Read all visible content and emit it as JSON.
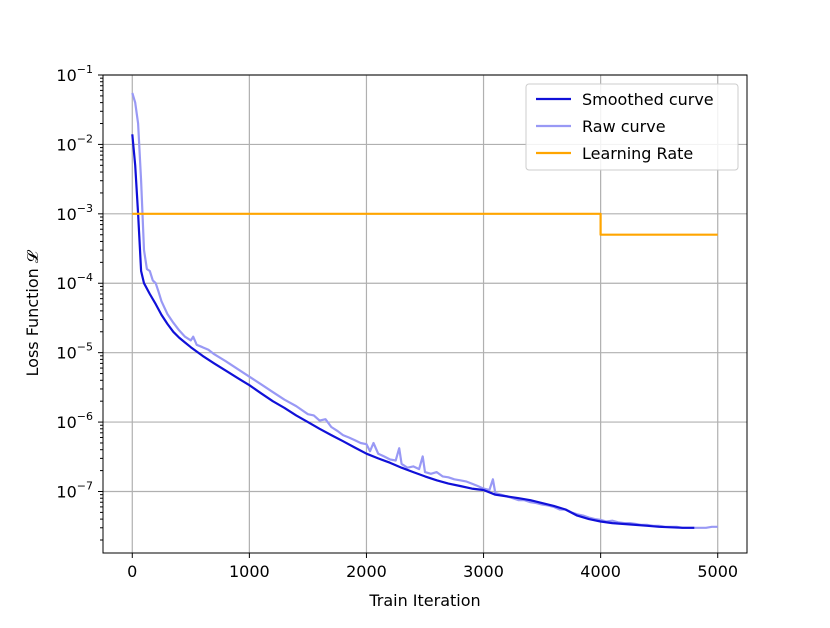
{
  "chart_data": {
    "type": "line",
    "title": "",
    "xlabel": "Train Iteration",
    "ylabel": "Loss Function 𝓛",
    "xscale": "linear",
    "yscale": "log",
    "xlim": [
      -250,
      5250
    ],
    "ylim": [
      1.3e-08,
      0.1
    ],
    "grid": true,
    "legend_position": "top-right",
    "x_ticks": [
      {
        "value": 0,
        "label": "0"
      },
      {
        "value": 1000,
        "label": "1000"
      },
      {
        "value": 2000,
        "label": "2000"
      },
      {
        "value": 3000,
        "label": "3000"
      },
      {
        "value": 4000,
        "label": "4000"
      },
      {
        "value": 5000,
        "label": "5000"
      }
    ],
    "y_ticks": [
      {
        "value": 1e-07,
        "base": "10",
        "exp": "−7"
      },
      {
        "value": 1e-06,
        "base": "10",
        "exp": "−6"
      },
      {
        "value": 1e-05,
        "base": "10",
        "exp": "−5"
      },
      {
        "value": 0.0001,
        "base": "10",
        "exp": "−4"
      },
      {
        "value": 0.001,
        "base": "10",
        "exp": "−3"
      },
      {
        "value": 0.01,
        "base": "10",
        "exp": "−2"
      },
      {
        "value": 0.1,
        "base": "10",
        "exp": "−1"
      }
    ],
    "series": [
      {
        "name": "Raw curve",
        "color": "#9999f5",
        "x": [
          0,
          25,
          50,
          75,
          100,
          125,
          150,
          175,
          200,
          225,
          250,
          300,
          350,
          400,
          450,
          500,
          520,
          550,
          600,
          650,
          700,
          800,
          900,
          1000,
          1100,
          1200,
          1300,
          1400,
          1500,
          1550,
          1600,
          1650,
          1700,
          1750,
          1800,
          1850,
          1900,
          1950,
          2000,
          2030,
          2060,
          2100,
          2150,
          2200,
          2250,
          2280,
          2300,
          2350,
          2400,
          2450,
          2480,
          2500,
          2550,
          2600,
          2650,
          2700,
          2750,
          2800,
          2850,
          2900,
          2950,
          3000,
          3050,
          3080,
          3100,
          3150,
          3200,
          3250,
          3300,
          3350,
          3400,
          3450,
          3500,
          3550,
          3600,
          3650,
          3700,
          3750,
          3800,
          3850,
          3900,
          3950,
          4000,
          4050,
          4100,
          4150,
          4200,
          4250,
          4300,
          4350,
          4400,
          4450,
          4500,
          4550,
          4600,
          4650,
          4700,
          4750,
          4800,
          4850,
          4900,
          4950,
          5000
        ],
        "y": [
          0.055,
          0.04,
          0.02,
          0.003,
          0.0003,
          0.00016,
          0.00015,
          0.00011,
          0.0001,
          7.5e-05,
          5.5e-05,
          3.6e-05,
          2.7e-05,
          2.1e-05,
          1.7e-05,
          1.5e-05,
          1.7e-05,
          1.3e-05,
          1.2e-05,
          1.1e-05,
          9.5e-06,
          7.5e-06,
          5.8e-06,
          4.5e-06,
          3.5e-06,
          2.7e-06,
          2.1e-06,
          1.7e-06,
          1.3e-06,
          1.25e-06,
          1.05e-06,
          1.1e-06,
          8.5e-07,
          7.5e-07,
          6.5e-07,
          6e-07,
          5.5e-07,
          5e-07,
          4.8e-07,
          3.8e-07,
          5e-07,
          3.5e-07,
          3.2e-07,
          2.9e-07,
          2.8e-07,
          4.2e-07,
          2.5e-07,
          2.2e-07,
          2.3e-07,
          2.1e-07,
          3.2e-07,
          1.9e-07,
          1.8e-07,
          1.9e-07,
          1.65e-07,
          1.6e-07,
          1.5e-07,
          1.45e-07,
          1.4e-07,
          1.3e-07,
          1.2e-07,
          1.1e-07,
          1.05e-07,
          1.5e-07,
          9.5e-08,
          9e-08,
          8.5e-08,
          8e-08,
          7.5e-08,
          7.5e-08,
          7e-08,
          6.8e-08,
          6.5e-08,
          6.3e-08,
          6e-08,
          5.5e-08,
          5.5e-08,
          5e-08,
          4.7e-08,
          4.5e-08,
          4.2e-08,
          4e-08,
          3.9e-08,
          3.7e-08,
          3.8e-08,
          3.6e-08,
          3.5e-08,
          3.5e-08,
          3.4e-08,
          3.3e-08,
          3.3e-08,
          3.2e-08,
          3.2e-08,
          3.1e-08,
          3.1e-08,
          3.1e-08,
          3e-08,
          3e-08,
          3e-08,
          3e-08,
          3e-08,
          3.1e-08,
          3.1e-08
        ]
      },
      {
        "name": "Smoothed curve",
        "color": "#1010d8",
        "x": [
          0,
          25,
          50,
          75,
          100,
          150,
          200,
          250,
          300,
          350,
          400,
          450,
          500,
          600,
          700,
          800,
          900,
          1000,
          1100,
          1200,
          1300,
          1400,
          1500,
          1600,
          1700,
          1800,
          1900,
          2000,
          2100,
          2200,
          2300,
          2400,
          2500,
          2600,
          2700,
          2800,
          2900,
          3000,
          3100,
          3200,
          3300,
          3400,
          3500,
          3600,
          3700,
          3800,
          3900,
          4000,
          4100,
          4200,
          4300,
          4400,
          4500,
          4600,
          4700,
          4800
        ],
        "y": [
          0.014,
          0.005,
          0.001,
          0.00015,
          0.0001,
          7e-05,
          5e-05,
          3.5e-05,
          2.6e-05,
          2e-05,
          1.65e-05,
          1.4e-05,
          1.2e-05,
          9e-06,
          7e-06,
          5.5e-06,
          4.3e-06,
          3.4e-06,
          2.6e-06,
          2e-06,
          1.6e-06,
          1.25e-06,
          1e-06,
          8e-07,
          6.5e-07,
          5.3e-07,
          4.3e-07,
          3.5e-07,
          3e-07,
          2.6e-07,
          2.2e-07,
          1.9e-07,
          1.65e-07,
          1.45e-07,
          1.3e-07,
          1.2e-07,
          1.1e-07,
          1.05e-07,
          9e-08,
          8.5e-08,
          8e-08,
          7.5e-08,
          6.8e-08,
          6.2e-08,
          5.5e-08,
          4.5e-08,
          4e-08,
          3.7e-08,
          3.5e-08,
          3.4e-08,
          3.3e-08,
          3.2e-08,
          3.1e-08,
          3.05e-08,
          3e-08,
          3e-08
        ]
      },
      {
        "name": "Learning Rate",
        "color": "#ffa500",
        "x": [
          0,
          4000,
          4000,
          5000
        ],
        "y": [
          0.001,
          0.001,
          0.0005,
          0.0005
        ]
      }
    ],
    "legend": [
      {
        "label": "Smoothed curve",
        "color": "#1010d8"
      },
      {
        "label": "Raw curve",
        "color": "#9999f5"
      },
      {
        "label": "Learning Rate",
        "color": "#ffa500"
      }
    ]
  }
}
